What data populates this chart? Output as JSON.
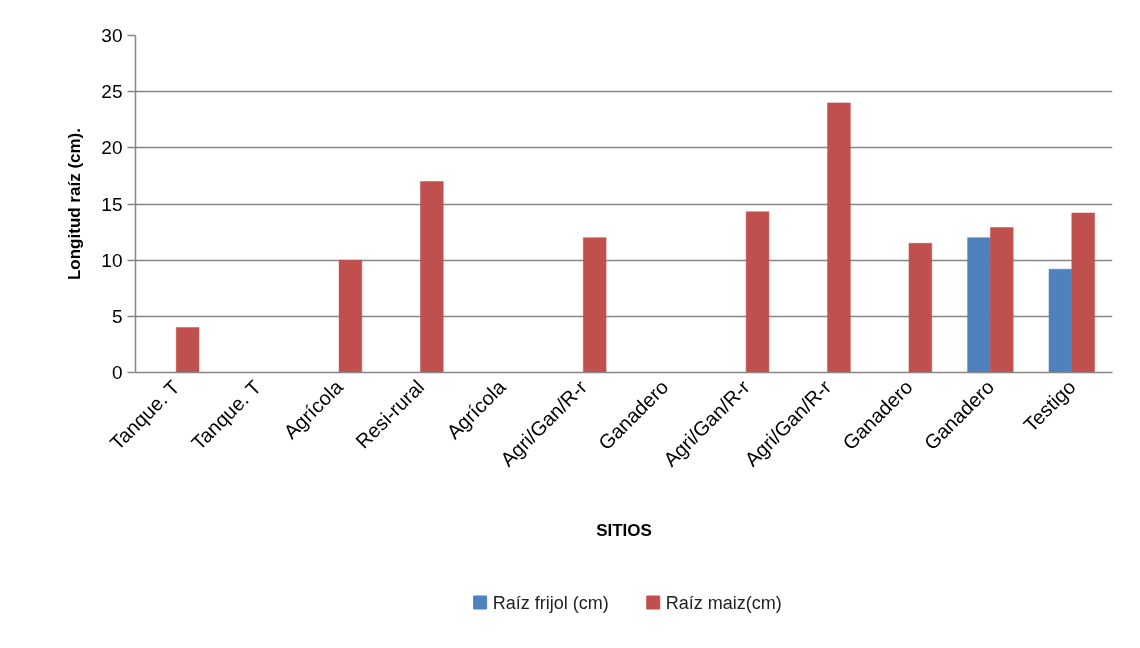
{
  "chart_data": {
    "type": "bar",
    "xlabel": "SITIOS",
    "ylabel": "Longitud raíz (cm).",
    "categories": [
      "Tanque. T",
      "Tanque. T",
      "Agrícola",
      "Resi-rural",
      "Agrícola",
      "Agri/Gan/R-r",
      "Ganadero",
      "Agri/Gan/R-r",
      "Agri/Gan/R-r",
      "Ganadero",
      "Ganadero",
      "Testigo"
    ],
    "series": [
      {
        "name": "Raíz frijol (cm)",
        "color": "#4f81bd",
        "values": [
          null,
          null,
          null,
          null,
          null,
          null,
          null,
          null,
          null,
          null,
          12,
          9.2
        ]
      },
      {
        "name": "Raíz maiz(cm)",
        "color": "#c0504d",
        "values": [
          4,
          null,
          10,
          17,
          null,
          12,
          null,
          14.3,
          24,
          11.5,
          12.9,
          14.2
        ]
      }
    ],
    "ylim": [
      0,
      30
    ],
    "yticks": [
      0,
      5,
      10,
      15,
      20,
      25,
      30
    ],
    "grid": "y",
    "legend": "bottom"
  }
}
